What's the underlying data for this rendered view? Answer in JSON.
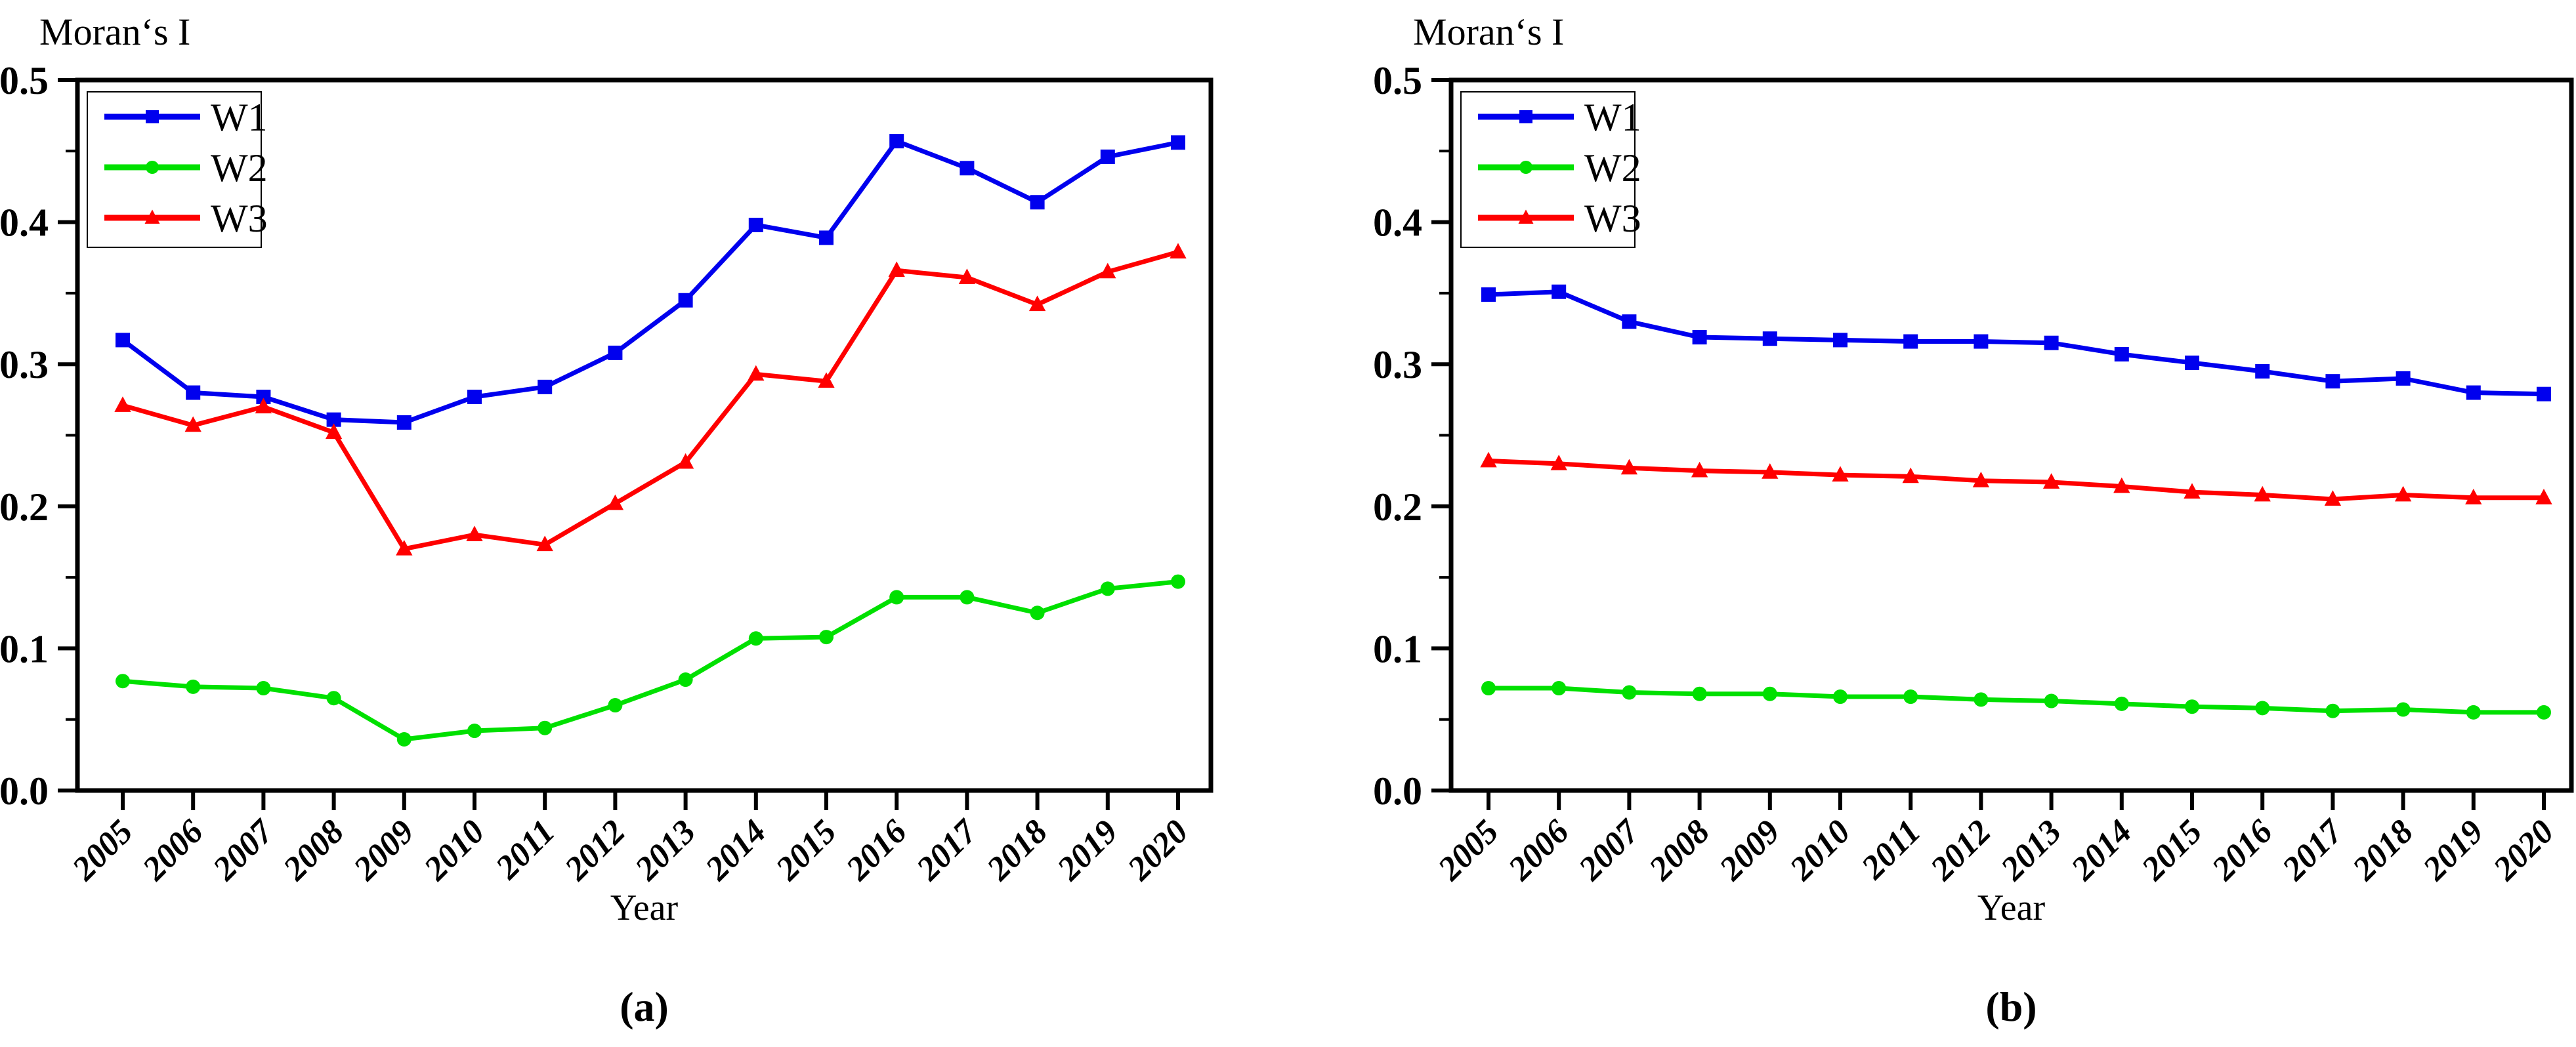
{
  "figure": {
    "background": "#ffffff",
    "axis_color": "#000000",
    "y_axis_title": "Moran‘s I",
    "x_axis_title": "Year"
  },
  "chart_data": [
    {
      "type": "line",
      "title": "Moran‘s I",
      "xlabel": "Year",
      "panel_label": "(a)",
      "categories": [
        "2005",
        "2006",
        "2007",
        "2008",
        "2009",
        "2010",
        "2011",
        "2012",
        "2013",
        "2014",
        "2015",
        "2016",
        "2017",
        "2018",
        "2019",
        "2020"
      ],
      "ylim": [
        0.0,
        0.5
      ],
      "yticks": [
        "0.0",
        "0.1",
        "0.2",
        "0.3",
        "0.4",
        "0.5"
      ],
      "minor_ytick_step": 0.05,
      "grid": false,
      "legend_position": "top-left",
      "series": [
        {
          "name": "W1",
          "color": "#0000ee",
          "marker": "square",
          "values": [
            0.317,
            0.28,
            0.277,
            0.261,
            0.259,
            0.277,
            0.284,
            0.308,
            0.345,
            0.398,
            0.389,
            0.457,
            0.438,
            0.414,
            0.446,
            0.456
          ]
        },
        {
          "name": "W2",
          "color": "#00e000",
          "marker": "circle",
          "values": [
            0.077,
            0.073,
            0.072,
            0.065,
            0.036,
            0.042,
            0.044,
            0.06,
            0.078,
            0.107,
            0.108,
            0.136,
            0.136,
            0.125,
            0.142,
            0.147
          ]
        },
        {
          "name": "W3",
          "color": "#ff0000",
          "marker": "triangle",
          "values": [
            0.271,
            0.257,
            0.27,
            0.252,
            0.17,
            0.18,
            0.173,
            0.202,
            0.231,
            0.293,
            0.288,
            0.366,
            0.361,
            0.342,
            0.365,
            0.379
          ]
        }
      ]
    },
    {
      "type": "line",
      "title": "Moran‘s I",
      "xlabel": "Year",
      "panel_label": "(b)",
      "categories": [
        "2005",
        "2006",
        "2007",
        "2008",
        "2009",
        "2010",
        "2011",
        "2012",
        "2013",
        "2014",
        "2015",
        "2016",
        "2017",
        "2018",
        "2019",
        "2020"
      ],
      "ylim": [
        0.0,
        0.5
      ],
      "yticks": [
        "0.0",
        "0.1",
        "0.2",
        "0.3",
        "0.4",
        "0.5"
      ],
      "minor_ytick_step": 0.05,
      "grid": false,
      "legend_position": "top-left",
      "series": [
        {
          "name": "W1",
          "color": "#0000ee",
          "marker": "square",
          "values": [
            0.349,
            0.351,
            0.33,
            0.319,
            0.318,
            0.317,
            0.316,
            0.316,
            0.315,
            0.307,
            0.301,
            0.295,
            0.288,
            0.29,
            0.28,
            0.279
          ]
        },
        {
          "name": "W2",
          "color": "#00e000",
          "marker": "circle",
          "values": [
            0.072,
            0.072,
            0.069,
            0.068,
            0.068,
            0.066,
            0.066,
            0.064,
            0.063,
            0.061,
            0.059,
            0.058,
            0.056,
            0.057,
            0.055,
            0.055
          ]
        },
        {
          "name": "W3",
          "color": "#ff0000",
          "marker": "triangle",
          "values": [
            0.232,
            0.23,
            0.227,
            0.225,
            0.224,
            0.222,
            0.221,
            0.218,
            0.217,
            0.214,
            0.21,
            0.208,
            0.205,
            0.208,
            0.206,
            0.206
          ]
        }
      ]
    }
  ]
}
